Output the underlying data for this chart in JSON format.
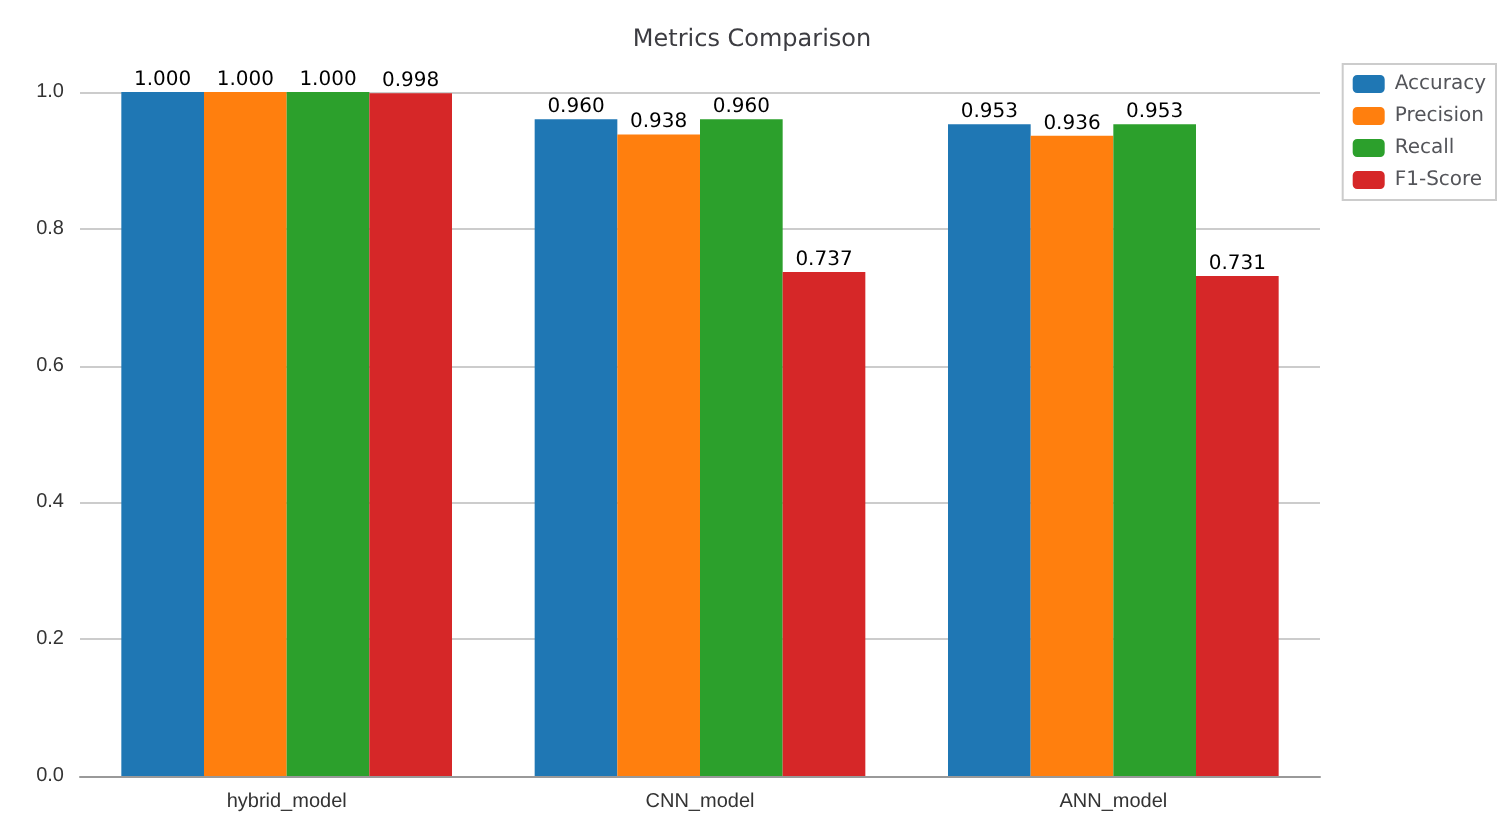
{
  "chart_data": {
    "type": "bar",
    "title": "Metrics Comparison",
    "categories": [
      "hybrid_model",
      "CNN_model",
      "ANN_model"
    ],
    "series": [
      {
        "name": "Accuracy",
        "color": "#1f77b4",
        "values": [
          1.0,
          0.96,
          0.953
        ],
        "value_labels": [
          "1.000",
          "0.960",
          "0.953"
        ]
      },
      {
        "name": "Precision",
        "color": "#ff7f0e",
        "values": [
          1.0,
          0.938,
          0.936
        ],
        "value_labels": [
          "1.000",
          "0.938",
          "0.936"
        ]
      },
      {
        "name": "Recall",
        "color": "#2ca02c",
        "values": [
          1.0,
          0.96,
          0.953
        ],
        "value_labels": [
          "1.000",
          "0.960",
          "0.953"
        ]
      },
      {
        "name": "F1-Score",
        "color": "#d62728",
        "values": [
          0.998,
          0.737,
          0.731
        ],
        "value_labels": [
          "0.998",
          "0.737",
          "0.731"
        ]
      }
    ],
    "ylim": [
      0,
      1.0
    ],
    "yticks": [
      {
        "value": 0,
        "label": "0.0"
      },
      {
        "value": 0.2,
        "label": "0.2"
      },
      {
        "value": 0.4,
        "label": "0.4"
      },
      {
        "value": 0.6,
        "label": "0.6"
      },
      {
        "value": 0.8,
        "label": "0.8"
      },
      {
        "value": 1.0,
        "label": "1.0"
      }
    ],
    "grid": "y",
    "legend": "top right"
  }
}
